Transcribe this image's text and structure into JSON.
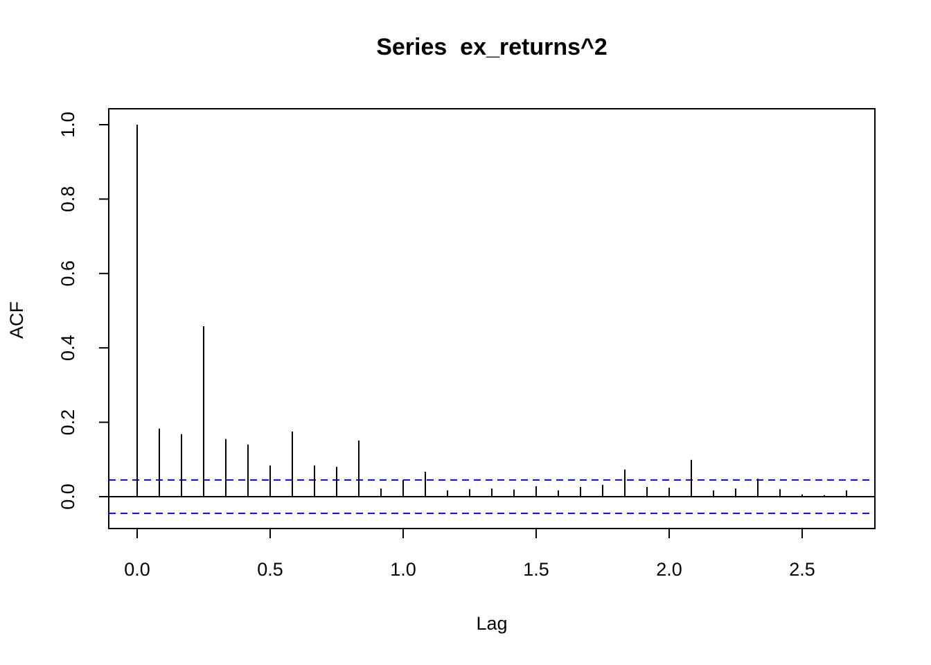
{
  "chart_data": {
    "type": "acf",
    "title": "Series  ex_returns^2",
    "x_label": "Lag",
    "y_label": "ACF",
    "x": [
      0,
      0.0833,
      0.1667,
      0.25,
      0.3333,
      0.4167,
      0.5,
      0.5833,
      0.6667,
      0.75,
      0.8333,
      0.9167,
      1,
      1.0833,
      1.1667,
      1.25,
      1.3333,
      1.4167,
      1.5,
      1.5833,
      1.6667,
      1.75,
      1.8333,
      1.9167,
      2,
      2.0833,
      2.1667,
      2.25,
      2.3333,
      2.4167,
      2.5,
      2.5833,
      2.6667
    ],
    "values": [
      1.0,
      0.183,
      0.168,
      0.458,
      0.155,
      0.14,
      0.084,
      0.175,
      0.084,
      0.08,
      0.151,
      0.022,
      0.045,
      0.067,
      0.017,
      0.02,
      0.022,
      0.019,
      0.028,
      0.017,
      0.026,
      0.032,
      0.073,
      0.026,
      0.024,
      0.099,
      0.017,
      0.022,
      0.048,
      0.02,
      0.006,
      0.004,
      0.017
    ],
    "color": "#000000",
    "ci_lines": [
      0.045,
      -0.045
    ],
    "ci_color": "#0000ff",
    "xlim": [
      -0.1067,
      2.7733
    ],
    "xticks": [
      {
        "value": 0,
        "label": "0.0"
      },
      0.5,
      {
        "value": 1,
        "label": "1.0"
      },
      1.5,
      {
        "value": 2,
        "label": "2.0"
      },
      2.5
    ],
    "ylim": [
      -0.0857,
      1.0428
    ],
    "yticks": [
      {
        "value": 0,
        "label": "0.0"
      },
      0.2,
      0.4,
      0.6,
      0.8,
      {
        "value": 1,
        "label": "1.0"
      }
    ]
  }
}
